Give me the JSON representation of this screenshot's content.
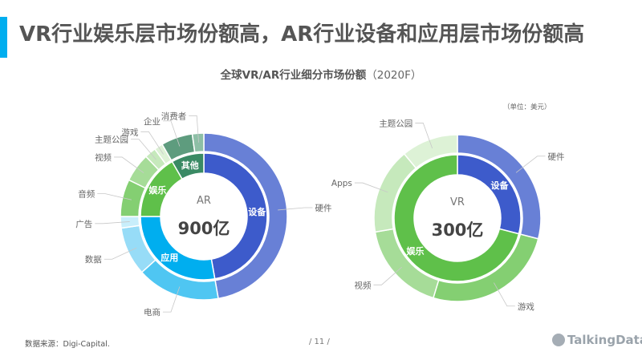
{
  "header": {
    "title": "VR行业娱乐层市场份额高，AR行业设备和应用层市场份额高",
    "accent_color": "#00aeef"
  },
  "subtitle": {
    "main": "全球VR/AR行业细分市场份额",
    "year": "（2020F）"
  },
  "unit": "（单位：美元）",
  "footer": {
    "source": "数据来源：Digi-Capital.",
    "page": "/  11  /",
    "logo": "TalkingData"
  },
  "chart_data": [
    {
      "type": "pie",
      "variant": "nested-donut",
      "center_label": "AR",
      "center_value": "900亿",
      "inner": [
        {
          "name": "设备",
          "value": 425,
          "color": "#3d5bcb"
        },
        {
          "name": "应用",
          "value": 250,
          "color": "#00aeef"
        },
        {
          "name": "娱乐",
          "value": 150,
          "color": "#5fc04a"
        },
        {
          "name": "其他",
          "value": 75,
          "color": "#3a8a64"
        }
      ],
      "outer": [
        {
          "name": "硬件",
          "value": 425,
          "color": "#6880d6"
        },
        {
          "name": "电商",
          "value": 145,
          "color": "#4fc6f2"
        },
        {
          "name": "数据",
          "value": 85,
          "color": "#97dcf7"
        },
        {
          "name": "广告",
          "value": 20,
          "color": "#c8eefb"
        },
        {
          "name": "音频",
          "value": 65,
          "color": "#84cf72"
        },
        {
          "name": "视频",
          "value": 50,
          "color": "#a6dc98"
        },
        {
          "name": "主题公园",
          "value": 20,
          "color": "#c6e9bc"
        },
        {
          "name": "游戏",
          "value": 15,
          "color": "#ddf2d6"
        },
        {
          "name": "企业",
          "value": 55,
          "color": "#5e9c7e"
        },
        {
          "name": "消费者",
          "value": 20,
          "color": "#8dbfa6"
        }
      ]
    },
    {
      "type": "pie",
      "variant": "nested-donut",
      "center_label": "VR",
      "center_value": "300亿",
      "inner": [
        {
          "name": "设备",
          "value": 87,
          "color": "#3d5bcb"
        },
        {
          "name": "娱乐",
          "value": 213,
          "color": "#5fc04a"
        }
      ],
      "outer": [
        {
          "name": "硬件",
          "value": 87,
          "color": "#6880d6"
        },
        {
          "name": "游戏",
          "value": 77,
          "color": "#84cf72"
        },
        {
          "name": "视频",
          "value": 53,
          "color": "#a6dc98"
        },
        {
          "name": "Apps",
          "value": 50,
          "color": "#c6e9bc"
        },
        {
          "name": "主题公园",
          "value": 33,
          "color": "#ddf2d6"
        }
      ]
    }
  ]
}
